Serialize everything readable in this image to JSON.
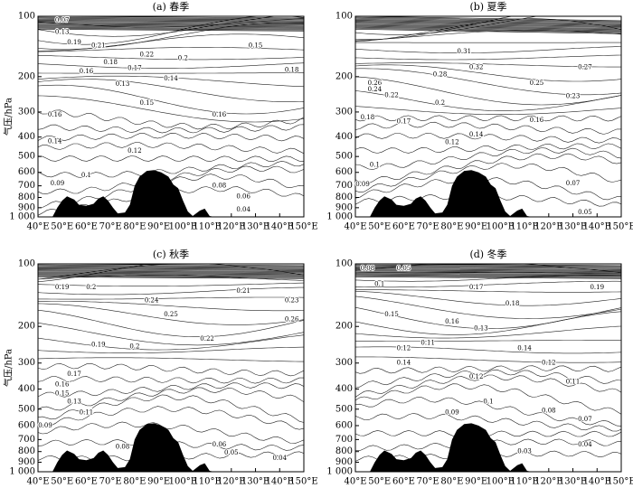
{
  "chart_data": [
    {
      "type": "contour",
      "title": "(a) 春季",
      "y_label": "气压/hPa",
      "yscale": "log",
      "xlim": [
        40,
        150
      ],
      "ylim": [
        1000,
        100
      ],
      "xticks": [
        {
          "value": 40,
          "label": "40°E"
        },
        {
          "value": 50,
          "label": "50°E"
        },
        {
          "value": 60,
          "label": "60°E"
        },
        {
          "value": 70,
          "label": "70°E"
        },
        {
          "value": 80,
          "label": "80°E"
        },
        {
          "value": 90,
          "label": "90°E"
        },
        {
          "value": 100,
          "label": "100°E"
        },
        {
          "value": 110,
          "label": "110°E"
        },
        {
          "value": 120,
          "label": "120°E"
        },
        {
          "value": 130,
          "label": "130°E"
        },
        {
          "value": 140,
          "label": "140°E"
        },
        {
          "value": 150,
          "label": "150°E"
        }
      ],
      "yticks": [
        100,
        200,
        300,
        400,
        500,
        600,
        700,
        800,
        900,
        {
          "value": 1000,
          "label": "1 000"
        }
      ],
      "contour_labels": [
        {
          "value": 0.07,
          "x": 50,
          "y": 105
        },
        {
          "value": 0.13,
          "x": 50,
          "y": 120
        },
        {
          "value": 0.19,
          "x": 55,
          "y": 135
        },
        {
          "value": 0.21,
          "x": 65,
          "y": 140
        },
        {
          "value": 0.22,
          "x": 85,
          "y": 155
        },
        {
          "value": 0.2,
          "x": 100,
          "y": 162
        },
        {
          "value": 0.18,
          "x": 70,
          "y": 170
        },
        {
          "value": 0.17,
          "x": 80,
          "y": 182
        },
        {
          "value": 0.16,
          "x": 60,
          "y": 188
        },
        {
          "value": 0.14,
          "x": 95,
          "y": 205
        },
        {
          "value": 0.13,
          "x": 75,
          "y": 218
        },
        {
          "value": 0.15,
          "x": 85,
          "y": 270
        },
        {
          "value": 0.16,
          "x": 47,
          "y": 310
        },
        {
          "value": 0.16,
          "x": 115,
          "y": 310
        },
        {
          "value": 0.18,
          "x": 145,
          "y": 185
        },
        {
          "value": 0.15,
          "x": 130,
          "y": 140
        },
        {
          "value": 0.14,
          "x": 47,
          "y": 420
        },
        {
          "value": 0.12,
          "x": 80,
          "y": 470
        },
        {
          "value": 0.1,
          "x": 60,
          "y": 620
        },
        {
          "value": 0.09,
          "x": 48,
          "y": 680
        },
        {
          "value": 0.08,
          "x": 115,
          "y": 700
        },
        {
          "value": 0.06,
          "x": 125,
          "y": 790
        },
        {
          "value": 0.04,
          "x": 125,
          "y": 920
        }
      ]
    },
    {
      "type": "contour",
      "title": "(b) 夏季",
      "yscale": "log",
      "xlim": [
        40,
        150
      ],
      "ylim": [
        1000,
        100
      ],
      "xticks": [
        {
          "value": 40,
          "label": "40°E"
        },
        {
          "value": 50,
          "label": "50°E"
        },
        {
          "value": 60,
          "label": "60°E"
        },
        {
          "value": 70,
          "label": "70°E"
        },
        {
          "value": 80,
          "label": "80°E"
        },
        {
          "value": 90,
          "label": "90°E"
        },
        {
          "value": 100,
          "label": "100°E"
        },
        {
          "value": 110,
          "label": "110°E"
        },
        {
          "value": 120,
          "label": "120°E"
        },
        {
          "value": 130,
          "label": "130°E"
        },
        {
          "value": 140,
          "label": "140°E"
        },
        {
          "value": 150,
          "label": "150°E"
        }
      ],
      "yticks": [
        100,
        200,
        300,
        400,
        500,
        600,
        700,
        800,
        900,
        {
          "value": 1000,
          "label": "1 000"
        }
      ],
      "contour_labels": [
        {
          "value": 0.31,
          "x": 85,
          "y": 150
        },
        {
          "value": 0.32,
          "x": 90,
          "y": 180
        },
        {
          "value": 0.28,
          "x": 75,
          "y": 195
        },
        {
          "value": 0.26,
          "x": 48,
          "y": 215
        },
        {
          "value": 0.24,
          "x": 48,
          "y": 232
        },
        {
          "value": 0.22,
          "x": 55,
          "y": 248
        },
        {
          "value": 0.27,
          "x": 135,
          "y": 180
        },
        {
          "value": 0.25,
          "x": 115,
          "y": 215
        },
        {
          "value": 0.23,
          "x": 130,
          "y": 250
        },
        {
          "value": 0.2,
          "x": 75,
          "y": 270
        },
        {
          "value": 0.18,
          "x": 45,
          "y": 320
        },
        {
          "value": 0.17,
          "x": 60,
          "y": 335
        },
        {
          "value": 0.16,
          "x": 115,
          "y": 330
        },
        {
          "value": 0.14,
          "x": 90,
          "y": 390
        },
        {
          "value": 0.12,
          "x": 80,
          "y": 425
        },
        {
          "value": 0.1,
          "x": 48,
          "y": 550
        },
        {
          "value": 0.09,
          "x": 43,
          "y": 690
        },
        {
          "value": 0.07,
          "x": 130,
          "y": 680
        },
        {
          "value": 0.05,
          "x": 135,
          "y": 950
        }
      ]
    },
    {
      "type": "contour",
      "title": "(c) 秋季",
      "y_label": "气压/hPa",
      "yscale": "log",
      "xlim": [
        40,
        150
      ],
      "ylim": [
        1000,
        100
      ],
      "xticks": [
        {
          "value": 40,
          "label": "40°E"
        },
        {
          "value": 50,
          "label": "50°E"
        },
        {
          "value": 60,
          "label": "60°E"
        },
        {
          "value": 70,
          "label": "70°E"
        },
        {
          "value": 80,
          "label": "80°E"
        },
        {
          "value": 90,
          "label": "90°E"
        },
        {
          "value": 100,
          "label": "100°E"
        },
        {
          "value": 110,
          "label": "110°E"
        },
        {
          "value": 120,
          "label": "120°E"
        },
        {
          "value": 130,
          "label": "130°E"
        },
        {
          "value": 140,
          "label": "140°E"
        },
        {
          "value": 150,
          "label": "150°E"
        }
      ],
      "yticks": [
        100,
        200,
        300,
        400,
        500,
        600,
        700,
        800,
        900,
        {
          "value": 1000,
          "label": "1 000"
        }
      ],
      "contour_labels": [
        {
          "value": 0.19,
          "x": 50,
          "y": 130
        },
        {
          "value": 0.2,
          "x": 62,
          "y": 130
        },
        {
          "value": 0.24,
          "x": 87,
          "y": 150
        },
        {
          "value": 0.25,
          "x": 95,
          "y": 175
        },
        {
          "value": 0.26,
          "x": 145,
          "y": 185
        },
        {
          "value": 0.21,
          "x": 125,
          "y": 135
        },
        {
          "value": 0.23,
          "x": 145,
          "y": 150
        },
        {
          "value": 0.22,
          "x": 110,
          "y": 230
        },
        {
          "value": 0.2,
          "x": 80,
          "y": 250
        },
        {
          "value": 0.19,
          "x": 65,
          "y": 245
        },
        {
          "value": 0.17,
          "x": 55,
          "y": 340
        },
        {
          "value": 0.16,
          "x": 50,
          "y": 380
        },
        {
          "value": 0.15,
          "x": 50,
          "y": 420
        },
        {
          "value": 0.13,
          "x": 55,
          "y": 460
        },
        {
          "value": 0.11,
          "x": 60,
          "y": 520
        },
        {
          "value": 0.09,
          "x": 43,
          "y": 600
        },
        {
          "value": 0.08,
          "x": 75,
          "y": 760
        },
        {
          "value": 0.06,
          "x": 115,
          "y": 740
        },
        {
          "value": 0.05,
          "x": 120,
          "y": 810
        },
        {
          "value": 0.04,
          "x": 140,
          "y": 860
        }
      ]
    },
    {
      "type": "contour",
      "title": "(d) 冬季",
      "yscale": "log",
      "xlim": [
        40,
        150
      ],
      "ylim": [
        1000,
        100
      ],
      "xticks": [
        {
          "value": 40,
          "label": "40°E"
        },
        {
          "value": 50,
          "label": "50°E"
        },
        {
          "value": 60,
          "label": "60°E"
        },
        {
          "value": 70,
          "label": "70°E"
        },
        {
          "value": 80,
          "label": "80°E"
        },
        {
          "value": 90,
          "label": "90°E"
        },
        {
          "value": 100,
          "label": "100°E"
        },
        {
          "value": 110,
          "label": "110°E"
        },
        {
          "value": 120,
          "label": "120°E"
        },
        {
          "value": 130,
          "label": "130°E"
        },
        {
          "value": 140,
          "label": "140°E"
        },
        {
          "value": 150,
          "label": "150°E"
        }
      ],
      "yticks": [
        100,
        200,
        300,
        400,
        500,
        600,
        700,
        800,
        900,
        {
          "value": 1000,
          "label": "1 000"
        }
      ],
      "contour_labels": [
        {
          "value": 0.08,
          "x": 45,
          "y": 105
        },
        {
          "value": 0.05,
          "x": 60,
          "y": 105
        },
        {
          "value": 0.1,
          "x": 50,
          "y": 125
        },
        {
          "value": 0.17,
          "x": 90,
          "y": 130
        },
        {
          "value": 0.18,
          "x": 105,
          "y": 155
        },
        {
          "value": 0.19,
          "x": 140,
          "y": 130
        },
        {
          "value": 0.15,
          "x": 55,
          "y": 175
        },
        {
          "value": 0.16,
          "x": 80,
          "y": 190
        },
        {
          "value": 0.13,
          "x": 92,
          "y": 205
        },
        {
          "value": 0.11,
          "x": 70,
          "y": 240
        },
        {
          "value": 0.12,
          "x": 60,
          "y": 255
        },
        {
          "value": 0.14,
          "x": 110,
          "y": 255
        },
        {
          "value": 0.14,
          "x": 60,
          "y": 300
        },
        {
          "value": 0.12,
          "x": 90,
          "y": 350
        },
        {
          "value": 0.12,
          "x": 120,
          "y": 300
        },
        {
          "value": 0.11,
          "x": 130,
          "y": 370
        },
        {
          "value": 0.1,
          "x": 95,
          "y": 460
        },
        {
          "value": 0.09,
          "x": 80,
          "y": 520
        },
        {
          "value": 0.08,
          "x": 120,
          "y": 510
        },
        {
          "value": 0.07,
          "x": 135,
          "y": 560
        },
        {
          "value": 0.04,
          "x": 135,
          "y": 740
        },
        {
          "value": 0.03,
          "x": 110,
          "y": 800
        }
      ]
    }
  ]
}
